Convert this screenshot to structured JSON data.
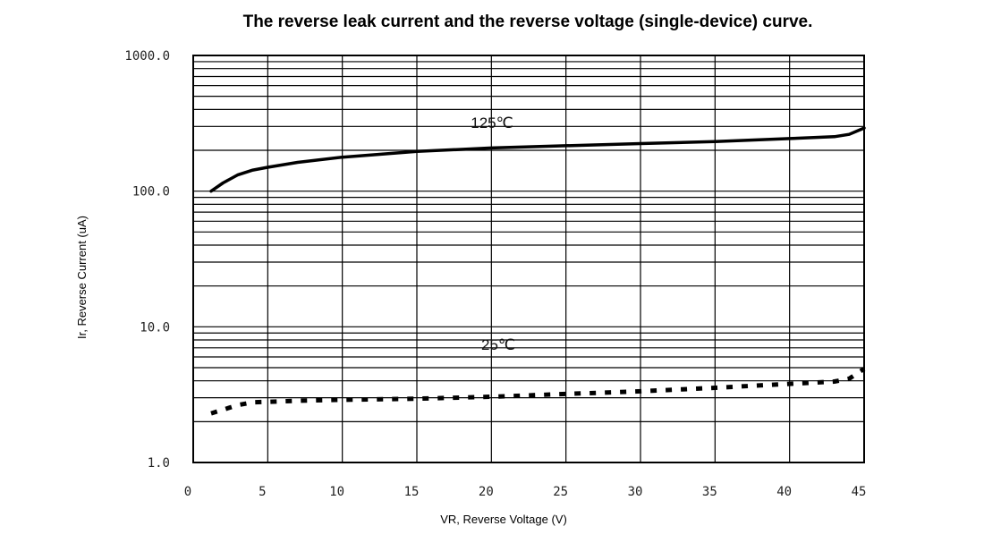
{
  "chart_data": {
    "type": "line",
    "title": "The reverse leak current and the reverse voltage (single-device) curve.",
    "xlabel": "VR, Reverse Voltage (V)",
    "ylabel": "Ir, Reverse Current (uA)",
    "xlim": [
      0,
      45
    ],
    "ylim": [
      1,
      1000
    ],
    "yscale": "log",
    "grid": true,
    "x_ticks": [
      0,
      5,
      10,
      15,
      20,
      25,
      30,
      35,
      40,
      45
    ],
    "x_tick_labels": [
      "0",
      "5",
      "10",
      "15",
      "20",
      "25",
      "30",
      "35",
      "40",
      "45"
    ],
    "y_ticks": [
      1,
      10,
      100,
      1000
    ],
    "y_tick_labels": [
      "1.0",
      "10.0",
      "100.0",
      "1000.0"
    ],
    "series": [
      {
        "name": "125℃",
        "style": "solid",
        "color": "#000000",
        "x": [
          1.2,
          2,
          3,
          4,
          5,
          7,
          10,
          15,
          20,
          25,
          30,
          35,
          40,
          43,
          44,
          45
        ],
        "y": [
          100,
          115,
          132,
          143,
          150,
          163,
          178,
          196,
          208,
          216,
          224,
          232,
          244,
          252,
          262,
          292
        ]
      },
      {
        "name": "25℃",
        "style": "dashed",
        "color": "#000000",
        "x": [
          1.2,
          2,
          3,
          4,
          5,
          7,
          10,
          15,
          20,
          25,
          30,
          35,
          40,
          43,
          44,
          45
        ],
        "y": [
          2.3,
          2.45,
          2.65,
          2.78,
          2.8,
          2.85,
          2.9,
          2.95,
          3.05,
          3.2,
          3.35,
          3.55,
          3.8,
          3.95,
          4.15,
          4.9
        ]
      }
    ]
  }
}
